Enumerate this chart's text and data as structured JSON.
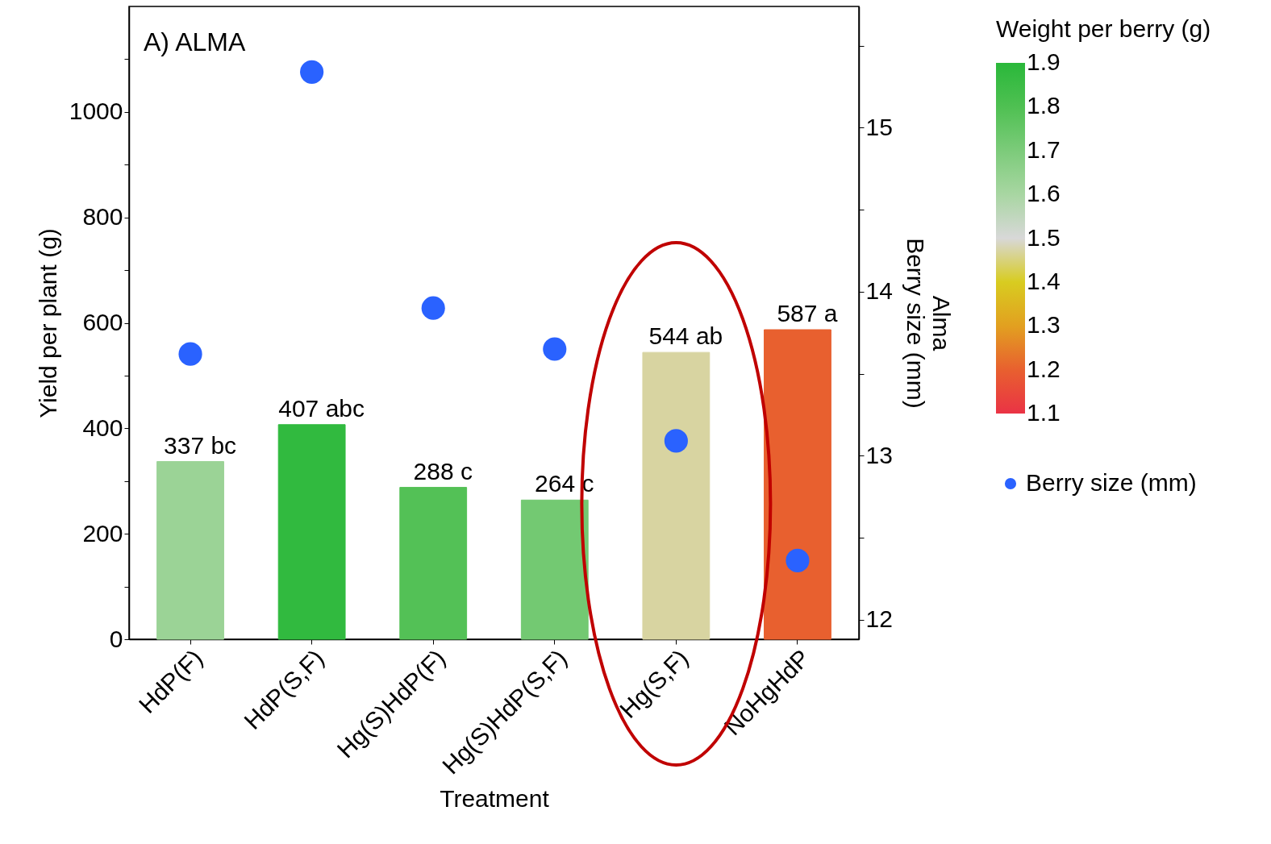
{
  "chart_data": {
    "type": "bar",
    "xlabel": "Treatment",
    "ylabel": "Yield per plant (g)",
    "y2label": "Alma\nBerry size (mm)",
    "clabel": "Weight per berry (g)",
    "annotations": [
      "A) ALMA"
    ],
    "categories": [
      "HdP(F)",
      "HdP(S,F)",
      "Hg(S)HdP(F)",
      "Hg(S)HdP(S,F)",
      "Hg(S,F)",
      "NoHgHdP"
    ],
    "series": [
      {
        "values": [
          337,
          407,
          288,
          264,
          544,
          587
        ],
        "cvalues": [
          1.63,
          1.88,
          1.79,
          1.72,
          1.47,
          1.2
        ],
        "colors": [
          "#9bd396",
          "#31ba3f",
          "#54c156",
          "#73c972",
          "#d8d4a1",
          "#e8602f"
        ],
        "value_labels": [
          "337 bc",
          "407 abc",
          "288 c",
          "264 c",
          "544 ab",
          "587 a"
        ]
      },
      {
        "type": "scatter",
        "name": "Berry size (mm)",
        "color": "#2a62ff",
        "axis": "y2",
        "values": [
          13.62,
          15.34,
          13.9,
          13.65,
          13.09,
          12.36
        ]
      }
    ],
    "ylim": [
      0,
      1200
    ],
    "yticks": [
      0,
      {
        "value": 100,
        "label": null
      },
      200,
      {
        "value": 300,
        "label": null
      },
      400,
      {
        "value": 500,
        "label": null
      },
      600,
      {
        "value": 700,
        "label": null
      },
      800,
      {
        "value": 900,
        "label": null
      },
      1000,
      {
        "value": 1100,
        "label": null
      }
    ],
    "y2lim": [
      11.88,
      15.74
    ],
    "y2ticks": [
      12,
      {
        "value": 12.5,
        "label": null
      },
      13,
      {
        "value": 13.5,
        "label": null
      },
      14,
      {
        "value": 14.5,
        "label": null
      },
      15,
      {
        "value": 15.5,
        "label": null
      }
    ],
    "clim": [
      1.1,
      1.9
    ],
    "cticks": [
      1.1,
      1.2,
      1.3,
      1.4,
      1.5,
      1.6,
      1.7,
      1.8,
      1.9
    ],
    "marker": "circle",
    "legend": "right",
    "grid": false
  }
}
